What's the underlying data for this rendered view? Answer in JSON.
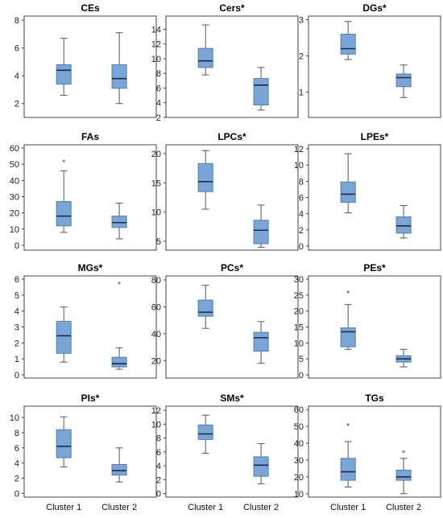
{
  "categories": [
    "Cluster 1",
    "Cluster 2"
  ],
  "colors": {
    "box": "#7aa6d6",
    "box_stroke": "#4a7fb5",
    "median": "#1a2a4a"
  },
  "chart_data": [
    {
      "type": "box",
      "title": "CEs",
      "ylim": [
        1.0,
        8.3
      ],
      "yticks": [
        2,
        4,
        6,
        8
      ],
      "boxes": [
        {
          "category": "Cluster 1",
          "min": 2.6,
          "q1": 3.4,
          "median": 4.4,
          "q3": 4.8,
          "max": 6.7,
          "outliers": []
        },
        {
          "category": "Cluster 2",
          "min": 2.0,
          "q1": 3.1,
          "median": 3.8,
          "q3": 4.8,
          "max": 7.1,
          "outliers": []
        }
      ]
    },
    {
      "type": "box",
      "title": "Cers*",
      "ylim": [
        2.0,
        15.8
      ],
      "yticks": [
        2,
        4,
        6,
        8,
        10,
        12,
        14
      ],
      "boxes": [
        {
          "category": "Cluster 1",
          "min": 7.8,
          "q1": 8.8,
          "median": 9.7,
          "q3": 11.4,
          "max": 14.6,
          "outliers": []
        },
        {
          "category": "Cluster 2",
          "min": 3.0,
          "q1": 3.7,
          "median": 6.4,
          "q3": 7.3,
          "max": 8.8,
          "outliers": []
        }
      ]
    },
    {
      "type": "box",
      "title": "DGs*",
      "ylim": [
        0.3,
        3.1
      ],
      "yticks": [
        1,
        2,
        3
      ],
      "boxes": [
        {
          "category": "Cluster 1",
          "min": 1.9,
          "q1": 2.05,
          "median": 2.2,
          "q3": 2.6,
          "max": 2.95,
          "outliers": []
        },
        {
          "category": "Cluster 2",
          "min": 0.85,
          "q1": 1.15,
          "median": 1.4,
          "q3": 1.5,
          "max": 1.75,
          "outliers": []
        }
      ]
    },
    {
      "type": "box",
      "title": "FAs",
      "ylim": [
        -3,
        62
      ],
      "yticks": [
        0,
        10,
        20,
        30,
        40,
        50,
        60
      ],
      "boxes": [
        {
          "category": "Cluster 1",
          "min": 8,
          "q1": 12,
          "median": 18,
          "q3": 27,
          "max": 46,
          "outliers": [
            52
          ]
        },
        {
          "category": "Cluster 2",
          "min": 4,
          "q1": 11,
          "median": 14,
          "q3": 18,
          "max": 26,
          "outliers": []
        }
      ]
    },
    {
      "type": "box",
      "title": "LPCs*",
      "ylim": [
        3.5,
        21.5
      ],
      "yticks": [
        5,
        10,
        15,
        20
      ],
      "boxes": [
        {
          "category": "Cluster 1",
          "min": 10.5,
          "q1": 13.5,
          "median": 15.2,
          "q3": 18.3,
          "max": 20.5,
          "outliers": []
        },
        {
          "category": "Cluster 2",
          "min": 4.0,
          "q1": 4.6,
          "median": 6.9,
          "q3": 8.6,
          "max": 11.2,
          "outliers": []
        }
      ]
    },
    {
      "type": "box",
      "title": "LPEs*",
      "ylim": [
        -0.5,
        12.5
      ],
      "yticks": [
        0,
        2,
        4,
        6,
        8,
        10,
        12
      ],
      "boxes": [
        {
          "category": "Cluster 1",
          "min": 4.1,
          "q1": 5.4,
          "median": 6.4,
          "q3": 7.9,
          "max": 11.4,
          "outliers": []
        },
        {
          "category": "Cluster 2",
          "min": 1.0,
          "q1": 1.6,
          "median": 2.5,
          "q3": 3.6,
          "max": 5.0,
          "outliers": []
        }
      ]
    },
    {
      "type": "box",
      "title": "MGs*",
      "ylim": [
        -0.2,
        6.2
      ],
      "yticks": [
        0,
        1,
        2,
        3,
        4,
        5,
        6
      ],
      "boxes": [
        {
          "category": "Cluster 1",
          "min": 0.8,
          "q1": 1.35,
          "median": 2.45,
          "q3": 3.35,
          "max": 4.25,
          "outliers": []
        },
        {
          "category": "Cluster 2",
          "min": 0.35,
          "q1": 0.5,
          "median": 0.7,
          "q3": 1.1,
          "max": 1.7,
          "outliers": [
            5.75
          ]
        }
      ]
    },
    {
      "type": "box",
      "title": "PCs*",
      "ylim": [
        7,
        83
      ],
      "yticks": [
        20,
        40,
        60,
        80
      ],
      "boxes": [
        {
          "category": "Cluster 1",
          "min": 44,
          "q1": 53,
          "median": 56,
          "q3": 65,
          "max": 76,
          "outliers": []
        },
        {
          "category": "Cluster 2",
          "min": 18,
          "q1": 27,
          "median": 37,
          "q3": 41,
          "max": 49,
          "outliers": []
        }
      ]
    },
    {
      "type": "box",
      "title": "PEs*",
      "ylim": [
        -1,
        31
      ],
      "yticks": [
        0,
        5,
        10,
        15,
        20,
        25,
        30
      ],
      "boxes": [
        {
          "category": "Cluster 1",
          "min": 8,
          "q1": 8.8,
          "median": 13.5,
          "q3": 14.7,
          "max": 22,
          "outliers": [
            26
          ]
        },
        {
          "category": "Cluster 2",
          "min": 2.5,
          "q1": 4,
          "median": 5,
          "q3": 6,
          "max": 8,
          "outliers": []
        }
      ]
    },
    {
      "type": "box",
      "title": "PIs*",
      "ylim": [
        -0.5,
        11.5
      ],
      "yticks": [
        0,
        2,
        4,
        6,
        8,
        10
      ],
      "boxes": [
        {
          "category": "Cluster 1",
          "min": 3.5,
          "q1": 4.7,
          "median": 6.2,
          "q3": 8.4,
          "max": 10.1,
          "outliers": []
        },
        {
          "category": "Cluster 2",
          "min": 1.5,
          "q1": 2.4,
          "median": 3.0,
          "q3": 3.8,
          "max": 6.0,
          "outliers": []
        }
      ]
    },
    {
      "type": "box",
      "title": "SMs*",
      "ylim": [
        -0.5,
        12.6
      ],
      "yticks": [
        0,
        2,
        4,
        6,
        8,
        10,
        12
      ],
      "boxes": [
        {
          "category": "Cluster 1",
          "min": 5.8,
          "q1": 7.8,
          "median": 8.6,
          "q3": 9.9,
          "max": 11.3,
          "outliers": []
        },
        {
          "category": "Cluster 2",
          "min": 1.4,
          "q1": 2.5,
          "median": 4.1,
          "q3": 5.3,
          "max": 7.2,
          "outliers": []
        }
      ]
    },
    {
      "type": "box",
      "title": "TGs",
      "ylim": [
        8,
        62
      ],
      "yticks": [
        10,
        20,
        30,
        40,
        50,
        60
      ],
      "boxes": [
        {
          "category": "Cluster 1",
          "min": 14,
          "q1": 18,
          "median": 23,
          "q3": 31,
          "max": 41,
          "outliers": [
            51
          ]
        },
        {
          "category": "Cluster 2",
          "min": 10,
          "q1": 18,
          "median": 20,
          "q3": 24,
          "max": 31,
          "outliers": [
            35
          ]
        }
      ]
    }
  ]
}
